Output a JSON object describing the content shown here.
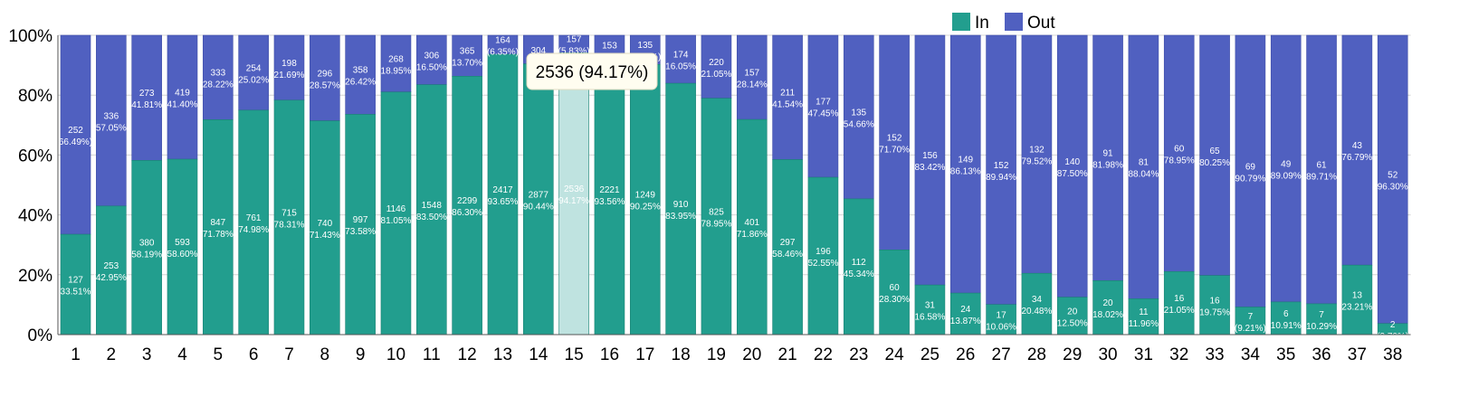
{
  "chart_data": {
    "type": "bar",
    "stacked": true,
    "normalized": true,
    "categories": [
      "1",
      "2",
      "3",
      "4",
      "5",
      "6",
      "7",
      "8",
      "9",
      "10",
      "11",
      "12",
      "13",
      "14",
      "15",
      "16",
      "17",
      "18",
      "19",
      "20",
      "21",
      "22",
      "23",
      "24",
      "25",
      "26",
      "27",
      "28",
      "29",
      "30",
      "31",
      "32",
      "33",
      "34",
      "35",
      "36",
      "37",
      "38"
    ],
    "series": [
      {
        "name": "In",
        "color": "#229e8e",
        "values": [
          127,
          253,
          380,
          593,
          847,
          761,
          715,
          740,
          997,
          1146,
          1548,
          2299,
          2417,
          2877,
          2536,
          2221,
          1249,
          910,
          825,
          401,
          297,
          196,
          112,
          60,
          31,
          24,
          17,
          34,
          20,
          20,
          11,
          16,
          16,
          7,
          6,
          7,
          13,
          2
        ],
        "labels": [
          "127\n(33.51%)",
          "253\n(42.95%)",
          "380\n(58.19%)",
          "593\n(58.60%)",
          "847\n(71.78%)",
          "761\n(74.98%)",
          "715\n(78.31%)",
          "740\n(71.43%)",
          "997\n(73.58%)",
          "1146\n(81.05%)",
          "1548\n(83.50%)",
          "2299\n(86.30%)",
          "2417\n(93.65%)",
          "2877\n(90.44%)",
          "2536\n(94.17%)",
          "2221\n(93.56%)",
          "1249\n(90.25%)",
          "910\n(83.95%)",
          "825\n(78.95%)",
          "401\n(71.86%)",
          "297\n(58.46%)",
          "196\n(52.55%)",
          "112\n(45.34%)",
          "60\n(28.30%)",
          "31\n(16.58%)",
          "24\n(13.87%)",
          "17\n(10.06%)",
          "34\n(20.48%)",
          "20\n(12.50%)",
          "20\n(18.02%)",
          "11\n(11.96%)",
          "16\n(21.05%)",
          "16\n(19.75%)",
          "7\n(9.21%)",
          "6\n(10.91%)",
          "7\n(10.29%)",
          "13\n(23.21%)",
          "2\n(3.70%)"
        ]
      },
      {
        "name": "Out",
        "color": "#5060c0",
        "values": [
          252,
          336,
          273,
          419,
          333,
          254,
          198,
          296,
          358,
          268,
          306,
          365,
          164,
          304,
          157,
          153,
          135,
          174,
          220,
          157,
          211,
          177,
          135,
          152,
          156,
          149,
          152,
          132,
          140,
          91,
          81,
          60,
          65,
          69,
          49,
          61,
          43,
          52
        ],
        "labels": [
          "252\n66.49%)",
          "336\n(57.05%)",
          "273\n(41.81%)",
          "419\n(41.40%)",
          "333\n(28.22%)",
          "254\n(25.02%)",
          "198\n(21.69%)",
          "296\n(28.57%)",
          "358\n(26.42%)",
          "268\n(18.95%)",
          "306\n(16.50%)",
          "365\n(13.70%)",
          "164\n(6.35%)",
          "304",
          "157\n(5.83%)",
          "153",
          "135\n(9.75%)",
          "174\n(16.05%)",
          "220\n(21.05%)",
          "157\n(28.14%)",
          "211\n(41.54%)",
          "177\n(47.45%)",
          "135\n(54.66%)",
          "152\n(71.70%)",
          "156\n(83.42%)",
          "149\n(86.13%)",
          "152\n(89.94%)",
          "132\n(79.52%)",
          "140\n(87.50%)",
          "91\n(81.98%)",
          "81\n(88.04%)",
          "60\n(78.95%)",
          "65\n(80.25%)",
          "69\n(90.79%)",
          "49\n(89.09%)",
          "61\n(89.71%)",
          "43\n(76.79%)",
          "52\n(96.30%)"
        ]
      }
    ],
    "y_ticks": [
      "0%",
      "20%",
      "40%",
      "60%",
      "80%",
      "100%"
    ],
    "ylim": [
      0,
      100
    ],
    "grid": true,
    "legend": {
      "position": "top-right",
      "items": [
        "In",
        "Out"
      ]
    },
    "highlighted_category": "15",
    "highlight_color": "#bfe3e0",
    "tooltip": {
      "category": "15",
      "text": "2536 (94.17%)"
    }
  }
}
